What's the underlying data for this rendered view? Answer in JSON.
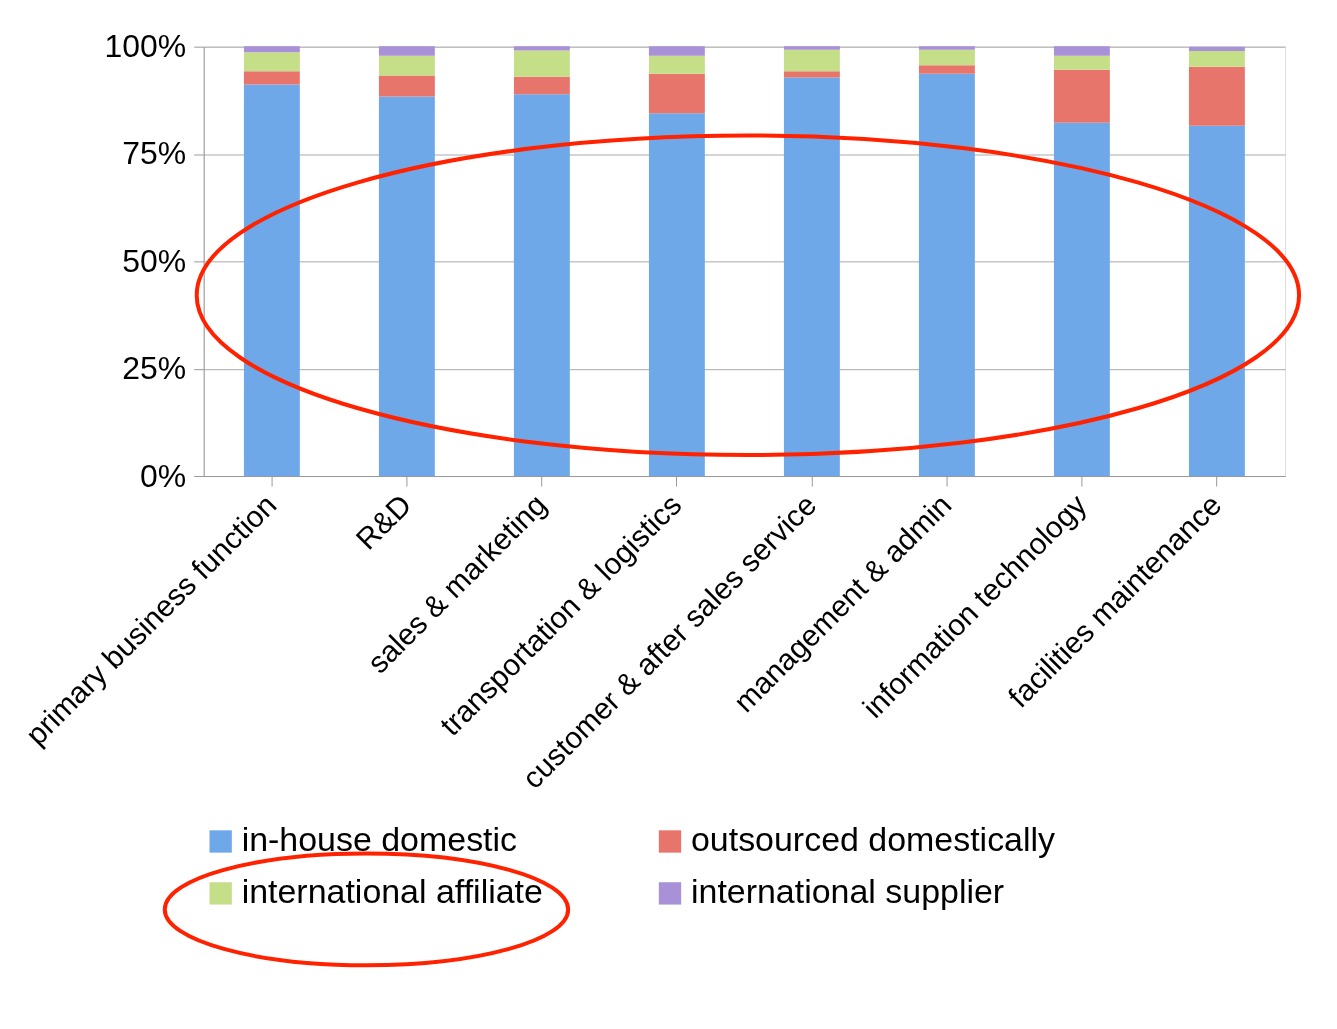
{
  "chart_data": {
    "type": "bar",
    "stacked": true,
    "categories": [
      "primary business function",
      "R&D",
      "sales & marketing",
      "transportation & logistics",
      "customer & after sales service",
      "management & admin",
      "information technology",
      "facilities maintenance"
    ],
    "series": [
      {
        "name": "in-house domestic",
        "color": "#6fa8e8",
        "values": [
          91.2,
          88.4,
          88.9,
          84.5,
          92.8,
          93.7,
          82.3,
          81.6
        ]
      },
      {
        "name": "outsourced domestically",
        "color": "#e8756c",
        "values": [
          3.1,
          4.9,
          4.1,
          9.2,
          1.5,
          2.0,
          12.3,
          13.7
        ]
      },
      {
        "name": "international affiliate",
        "color": "#c4df88",
        "values": [
          4.4,
          4.6,
          6.1,
          4.2,
          5.0,
          3.6,
          3.3,
          3.7
        ]
      },
      {
        "name": "international supplier",
        "color": "#a891d6",
        "values": [
          1.4,
          2.2,
          1.0,
          2.2,
          0.8,
          0.8,
          2.2,
          1.0
        ]
      }
    ],
    "ylim": [
      0,
      100
    ],
    "yticks": [
      {
        "value": 0,
        "label": "0%"
      },
      {
        "value": 25,
        "label": "25%"
      },
      {
        "value": 50,
        "label": "50%"
      },
      {
        "value": 75,
        "label": "75%"
      },
      {
        "value": 100,
        "label": "100%"
      }
    ],
    "grid": "y",
    "legend": "bottom"
  }
}
